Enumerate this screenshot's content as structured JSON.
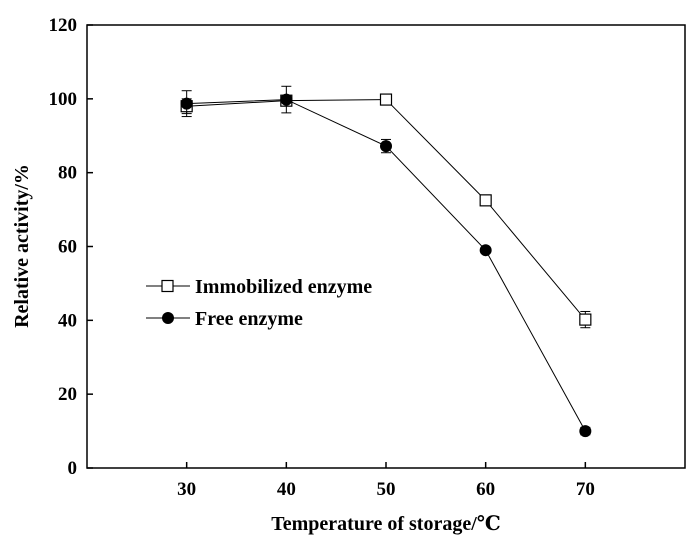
{
  "chart_data": {
    "type": "line",
    "xlabel": "Temperature of storage/℃",
    "ylabel": "Relative activity/%",
    "x": [
      30,
      40,
      50,
      60,
      70
    ],
    "xlim": [
      20,
      80
    ],
    "ylim": [
      0,
      120
    ],
    "xticks": [
      30,
      40,
      50,
      60,
      70
    ],
    "yticks": [
      0,
      20,
      40,
      60,
      80,
      100,
      120
    ],
    "grid": false,
    "legend_position": "center-left",
    "series": [
      {
        "name": "Immobilized enzyme",
        "marker": "open-square",
        "color": "#000000",
        "values": [
          98.0,
          99.5,
          99.8,
          72.5,
          40.2
        ],
        "errors": [
          2.0,
          1.0,
          1.0,
          1.0,
          2.2
        ]
      },
      {
        "name": "Free enzyme",
        "marker": "filled-circle",
        "color": "#000000",
        "values": [
          98.7,
          99.8,
          87.2,
          59.0,
          10.0
        ],
        "errors": [
          3.5,
          3.6,
          1.8,
          0.6,
          1.0
        ]
      }
    ]
  }
}
